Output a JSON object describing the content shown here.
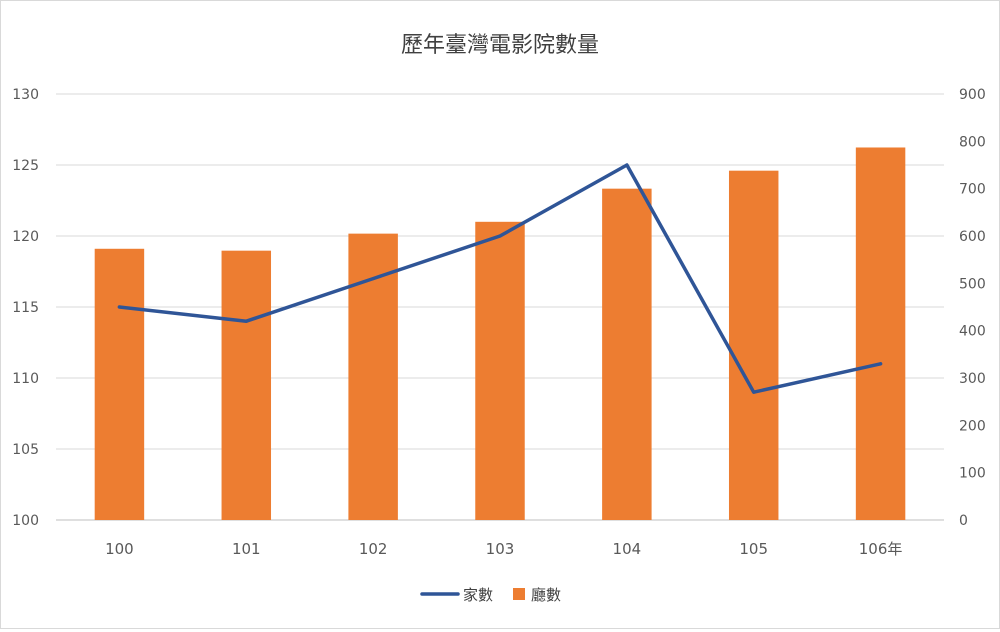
{
  "chart_data": {
    "type": "bar",
    "title": "歷年臺灣電影院數量",
    "categories": [
      "100",
      "101",
      "102",
      "103",
      "104",
      "105",
      "106年"
    ],
    "series": [
      {
        "name": "廳數",
        "type": "bar",
        "axis": "right",
        "color": "#ed7d31",
        "values": [
          573,
          569,
          605,
          630,
          700,
          738,
          787
        ]
      },
      {
        "name": "家數",
        "type": "line",
        "axis": "left",
        "color": "#2f5597",
        "values": [
          115,
          114,
          117,
          120,
          125,
          109,
          111
        ]
      }
    ],
    "left_axis": {
      "min": 100,
      "max": 130,
      "ticks": [
        "100",
        "105",
        "110",
        "115",
        "120",
        "125",
        "130"
      ]
    },
    "right_axis": {
      "min": 0,
      "max": 900,
      "ticks": [
        "0",
        "100",
        "200",
        "300",
        "400",
        "500",
        "600",
        "700",
        "800",
        "900"
      ]
    },
    "grid": true,
    "legend_position": "bottom"
  }
}
